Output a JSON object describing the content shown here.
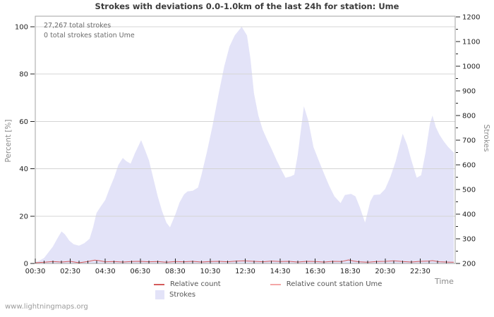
{
  "chart_data": {
    "type": "area",
    "title": "Strokes with deviations 0.0-1.0km of the last 24h for station: Ume",
    "xlabel": "Time",
    "ylabel_left": "Percent  [%]",
    "ylabel_right": "Strokes",
    "annotations": [
      "27,267 total strokes",
      "0 total strokes station Ume"
    ],
    "watermark": "www.lightningmaps.org",
    "legend_position": "bottom",
    "grid": "horizontal-only",
    "x_axis": {
      "min_hour": 0.5,
      "max_hour": 24.5,
      "minor_step_hour": 0.5,
      "major_tick_hours": [
        0.5,
        2.5,
        4.5,
        6.5,
        8.5,
        10.5,
        12.5,
        14.5,
        16.5,
        18.5,
        20.5,
        22.5
      ],
      "major_tick_labels": [
        "00:30",
        "02:30",
        "04:30",
        "06:30",
        "08:30",
        "10:30",
        "12:30",
        "14:30",
        "16:30",
        "18:30",
        "20:30",
        "22:30"
      ]
    },
    "left_axis": {
      "min": 0,
      "max": 100,
      "majors": [
        0,
        20,
        40,
        60,
        80,
        100
      ],
      "gridlines": [
        20,
        40,
        60,
        80,
        100
      ]
    },
    "right_axis": {
      "min": 200,
      "max": 1200,
      "minor_step": 50,
      "majors": [
        200,
        300,
        400,
        500,
        600,
        700,
        800,
        900,
        1000,
        1100,
        1200
      ]
    },
    "colors": {
      "strokes_area": "#e3e3f8",
      "relative_count": "#d45b5b",
      "relative_count_station": "#f4a7a7",
      "frame": "#a3a3a3",
      "gridline": "#d4d4d4",
      "tick": "#222222",
      "tick_label": "#222222"
    },
    "series": [
      {
        "name": "Strokes",
        "key": "strokes",
        "type": "area",
        "axis": "right",
        "points": [
          [
            0.5,
            205
          ],
          [
            0.75,
            212
          ],
          [
            1.0,
            222
          ],
          [
            1.25,
            245
          ],
          [
            1.5,
            268
          ],
          [
            1.75,
            300
          ],
          [
            2.0,
            330
          ],
          [
            2.2,
            318
          ],
          [
            2.45,
            292
          ],
          [
            2.7,
            278
          ],
          [
            3.0,
            272
          ],
          [
            3.3,
            282
          ],
          [
            3.6,
            300
          ],
          [
            3.8,
            345
          ],
          [
            4.0,
            405
          ],
          [
            4.25,
            432
          ],
          [
            4.5,
            458
          ],
          [
            4.75,
            505
          ],
          [
            5.0,
            548
          ],
          [
            5.25,
            600
          ],
          [
            5.5,
            628
          ],
          [
            5.7,
            615
          ],
          [
            5.95,
            605
          ],
          [
            6.2,
            648
          ],
          [
            6.55,
            700
          ],
          [
            6.8,
            655
          ],
          [
            7.0,
            618
          ],
          [
            7.25,
            545
          ],
          [
            7.5,
            472
          ],
          [
            7.75,
            412
          ],
          [
            8.0,
            365
          ],
          [
            8.2,
            347
          ],
          [
            8.5,
            398
          ],
          [
            8.75,
            448
          ],
          [
            9.0,
            480
          ],
          [
            9.2,
            492
          ],
          [
            9.5,
            495
          ],
          [
            9.8,
            508
          ],
          [
            10.0,
            560
          ],
          [
            10.3,
            650
          ],
          [
            10.6,
            748
          ],
          [
            11.0,
            895
          ],
          [
            11.3,
            1000
          ],
          [
            11.6,
            1080
          ],
          [
            11.9,
            1125
          ],
          [
            12.3,
            1160
          ],
          [
            12.6,
            1125
          ],
          [
            12.8,
            1030
          ],
          [
            13.0,
            890
          ],
          [
            13.25,
            800
          ],
          [
            13.5,
            742
          ],
          [
            13.75,
            702
          ],
          [
            14.0,
            665
          ],
          [
            14.3,
            618
          ],
          [
            14.6,
            575
          ],
          [
            14.8,
            548
          ],
          [
            15.1,
            553
          ],
          [
            15.3,
            560
          ],
          [
            15.5,
            640
          ],
          [
            15.85,
            838
          ],
          [
            16.1,
            780
          ],
          [
            16.4,
            672
          ],
          [
            16.7,
            618
          ],
          [
            17.0,
            565
          ],
          [
            17.3,
            515
          ],
          [
            17.6,
            472
          ],
          [
            17.95,
            445
          ],
          [
            18.2,
            478
          ],
          [
            18.55,
            482
          ],
          [
            18.8,
            472
          ],
          [
            19.05,
            428
          ],
          [
            19.35,
            366
          ],
          [
            19.65,
            452
          ],
          [
            19.85,
            478
          ],
          [
            20.2,
            480
          ],
          [
            20.5,
            502
          ],
          [
            20.8,
            552
          ],
          [
            21.1,
            615
          ],
          [
            21.5,
            726
          ],
          [
            21.75,
            682
          ],
          [
            22.0,
            618
          ],
          [
            22.3,
            548
          ],
          [
            22.55,
            558
          ],
          [
            22.8,
            648
          ],
          [
            23.05,
            765
          ],
          [
            23.2,
            800
          ],
          [
            23.4,
            752
          ],
          [
            23.6,
            722
          ],
          [
            23.85,
            695
          ],
          [
            24.1,
            672
          ],
          [
            24.42,
            650
          ]
        ]
      },
      {
        "name": "Relative count",
        "key": "relative_count",
        "type": "line",
        "axis": "left",
        "points": [
          [
            0.5,
            0.3
          ],
          [
            1.0,
            0.5
          ],
          [
            1.5,
            0.8
          ],
          [
            2.0,
            0.6
          ],
          [
            2.5,
            0.9
          ],
          [
            3.0,
            0.3
          ],
          [
            3.5,
            0.8
          ],
          [
            3.9,
            1.4
          ],
          [
            4.2,
            1.1
          ],
          [
            4.5,
            0.7
          ],
          [
            5.0,
            0.8
          ],
          [
            5.5,
            0.6
          ],
          [
            6.0,
            0.8
          ],
          [
            6.5,
            0.9
          ],
          [
            7.0,
            0.7
          ],
          [
            7.5,
            0.8
          ],
          [
            8.0,
            0.5
          ],
          [
            8.5,
            0.8
          ],
          [
            9.0,
            0.7
          ],
          [
            9.5,
            0.9
          ],
          [
            10.0,
            0.6
          ],
          [
            10.5,
            0.8
          ],
          [
            11.0,
            0.9
          ],
          [
            11.5,
            0.7
          ],
          [
            12.0,
            1.0
          ],
          [
            12.4,
            1.1
          ],
          [
            13.0,
            0.9
          ],
          [
            13.5,
            0.7
          ],
          [
            14.0,
            1.0
          ],
          [
            14.5,
            0.8
          ],
          [
            15.0,
            0.9
          ],
          [
            15.5,
            0.6
          ],
          [
            16.0,
            0.9
          ],
          [
            16.5,
            0.8
          ],
          [
            17.0,
            0.6
          ],
          [
            17.5,
            0.9
          ],
          [
            18.0,
            0.8
          ],
          [
            18.4,
            1.5
          ],
          [
            18.7,
            1.0
          ],
          [
            19.0,
            0.7
          ],
          [
            19.5,
            0.5
          ],
          [
            20.0,
            0.8
          ],
          [
            20.5,
            0.9
          ],
          [
            21.0,
            1.1
          ],
          [
            21.5,
            0.8
          ],
          [
            22.0,
            0.6
          ],
          [
            22.5,
            0.9
          ],
          [
            23.0,
            1.0
          ],
          [
            23.2,
            1.2
          ],
          [
            23.6,
            0.7
          ],
          [
            24.0,
            0.6
          ],
          [
            24.42,
            0.5
          ]
        ]
      },
      {
        "name": "Relative count station Ume",
        "key": "relative_count_station",
        "type": "line",
        "axis": "left",
        "points": [
          [
            0.5,
            0
          ],
          [
            24.42,
            0
          ]
        ]
      }
    ]
  }
}
